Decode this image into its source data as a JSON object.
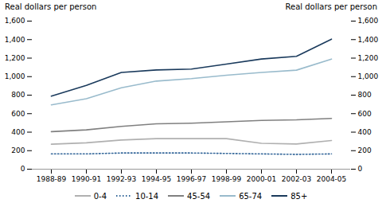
{
  "chart_data": {
    "type": "line",
    "ylabel": "Real dollars per person",
    "y2label": "Real dollars per person",
    "categories": [
      "1988-89",
      "1990-91",
      "1992-93",
      "1994-95",
      "1996-97",
      "1998-99",
      "2000-01",
      "2002-03",
      "2004-05"
    ],
    "series": [
      {
        "name": "0-4",
        "color": "#b0b0b0",
        "line_style": "solid",
        "values": [
          270,
          285,
          315,
          330,
          330,
          330,
          280,
          272,
          310
        ]
      },
      {
        "name": "10-14",
        "color": "#336699",
        "line_style": "dotted",
        "values": [
          165,
          165,
          175,
          175,
          175,
          170,
          165,
          160,
          165
        ]
      },
      {
        "name": "45-54",
        "color": "#808080",
        "line_style": "solid",
        "values": [
          405,
          425,
          462,
          490,
          497,
          512,
          527,
          533,
          548
        ]
      },
      {
        "name": "65-74",
        "color": "#99bbcc",
        "line_style": "solid",
        "values": [
          695,
          762,
          880,
          952,
          978,
          1015,
          1045,
          1070,
          1190
        ]
      },
      {
        "name": "85+",
        "color": "#1a3a5c",
        "line_style": "solid",
        "values": [
          790,
          905,
          1045,
          1072,
          1082,
          1135,
          1190,
          1220,
          1405
        ]
      }
    ],
    "ylim": [
      0,
      1600
    ],
    "yticks": [
      0,
      200,
      400,
      600,
      800,
      {
        "value": 1000,
        "label": "1,000"
      },
      {
        "value": 1200,
        "label": "1,200"
      },
      {
        "value": 1400,
        "label": "1,400"
      },
      {
        "value": 1600,
        "label": "1,600"
      }
    ],
    "y2lim": [
      0,
      1600
    ],
    "y2ticks": [
      0,
      200,
      400,
      600,
      800,
      {
        "value": 1000,
        "label": "1,000"
      },
      {
        "value": 1200,
        "label": "1,200"
      },
      {
        "value": 1400,
        "label": "1,400"
      },
      {
        "value": 1600,
        "label": "1,600"
      }
    ],
    "grid": false,
    "legend": "bottom"
  }
}
